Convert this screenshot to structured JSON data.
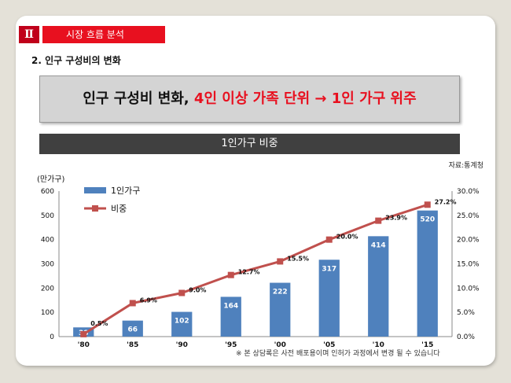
{
  "section": {
    "number": "Ⅱ",
    "title": "시장 흐름 분석"
  },
  "subheading": "2. 인구 구성비의 변화",
  "headline": {
    "prefix": "인구 구성비 변화, ",
    "highlight": "4인 이상 가족 단위 → 1인 가구 위주"
  },
  "chart_title": "1인가구 비중",
  "source": "자료:통계청",
  "footnote": "※ 본 상담록은 사전  배포용이며 인허가 과정에서 변경 될 수 있습니다",
  "colors": {
    "bar": "#4f81bd",
    "line": "#c0504d",
    "accent_red": "#e8101f",
    "dark_red": "#c0001a"
  },
  "chart_data": {
    "type": "bar+line",
    "categories": [
      "'80",
      "'85",
      "'90",
      "'95",
      "'00",
      "'05",
      "'10",
      "'15"
    ],
    "series": [
      {
        "name": "1인가구",
        "type": "bar",
        "axis": "left",
        "values": [
          38,
          66,
          102,
          164,
          222,
          317,
          414,
          520
        ],
        "labels": [
          "38",
          "66",
          "102",
          "164",
          "222",
          "317",
          "414",
          "520"
        ]
      },
      {
        "name": "비중",
        "type": "line",
        "axis": "right",
        "values": [
          0.5,
          6.9,
          9.0,
          12.7,
          15.5,
          20.0,
          23.9,
          27.2
        ],
        "labels": [
          "0.5%",
          "6.9%",
          "9.0%",
          "12.7%",
          "15.5%",
          "20.0%",
          "23.9%",
          "27.2%"
        ]
      }
    ],
    "ylabel": "(만가구)",
    "ylim_left": [
      0,
      600
    ],
    "yticks_left": [
      "0",
      "100",
      "200",
      "300",
      "400",
      "500",
      "600"
    ],
    "ylim_right": [
      0,
      30
    ],
    "yticks_right": [
      "0.0%",
      "5.0%",
      "10.0%",
      "15.0%",
      "20.0%",
      "25.0%",
      "30.0%"
    ],
    "legend": "top-left",
    "grid": false
  }
}
